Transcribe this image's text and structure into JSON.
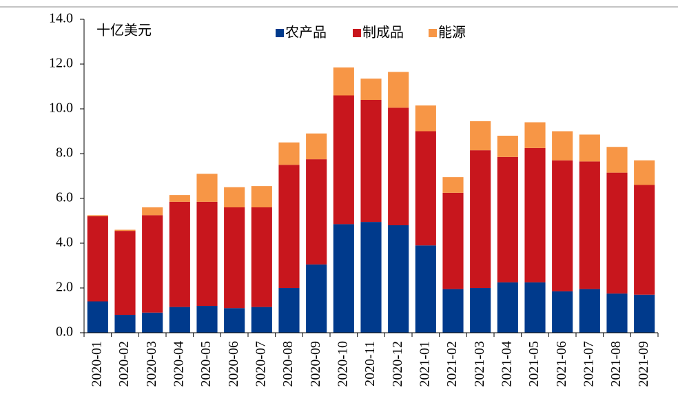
{
  "chart_data": {
    "type": "stacked_bar",
    "annotations": [
      "十亿美元"
    ],
    "categories": [
      "2020-01",
      "2020-02",
      "2020-03",
      "2020-04",
      "2020-05",
      "2020-06",
      "2020-07",
      "2020-08",
      "2020-09",
      "2020-10",
      "2020-11",
      "2020-12",
      "2021-01",
      "2021-02",
      "2021-03",
      "2021-04",
      "2021-05",
      "2021-06",
      "2021-07",
      "2021-08",
      "2021-09"
    ],
    "series": [
      {
        "name": "农产品",
        "color": "#003a8c",
        "values": [
          1.4,
          0.8,
          0.9,
          1.15,
          1.2,
          1.1,
          1.15,
          2.0,
          3.05,
          4.85,
          4.95,
          4.8,
          3.9,
          1.95,
          2.0,
          2.25,
          2.25,
          1.85,
          1.95,
          1.75,
          1.7
        ]
      },
      {
        "name": "制成品",
        "color": "#c8161d",
        "values": [
          3.8,
          3.75,
          4.35,
          4.7,
          4.65,
          4.5,
          4.45,
          5.5,
          4.7,
          5.75,
          5.45,
          5.25,
          5.1,
          4.3,
          6.15,
          5.6,
          6.0,
          5.85,
          5.7,
          5.4,
          4.9
        ]
      },
      {
        "name": "能源",
        "color": "#f79646",
        "values": [
          0.05,
          0.05,
          0.35,
          0.3,
          1.25,
          0.9,
          0.95,
          1.0,
          1.15,
          1.25,
          0.95,
          1.6,
          1.15,
          0.7,
          1.3,
          0.95,
          1.15,
          1.3,
          1.2,
          1.15,
          1.1
        ]
      }
    ],
    "ylim": [
      0,
      14
    ],
    "yticks": [
      {
        "value": 0,
        "label": "0.0"
      },
      {
        "value": 2,
        "label": "2.0"
      },
      {
        "value": 4,
        "label": "4.0"
      },
      {
        "value": 6,
        "label": "6.0"
      },
      {
        "value": 8,
        "label": "8.0"
      },
      {
        "value": 10,
        "label": "10.0"
      },
      {
        "value": 12,
        "label": "12.0"
      },
      {
        "value": 14,
        "label": "14.0"
      }
    ],
    "legend": "top"
  }
}
